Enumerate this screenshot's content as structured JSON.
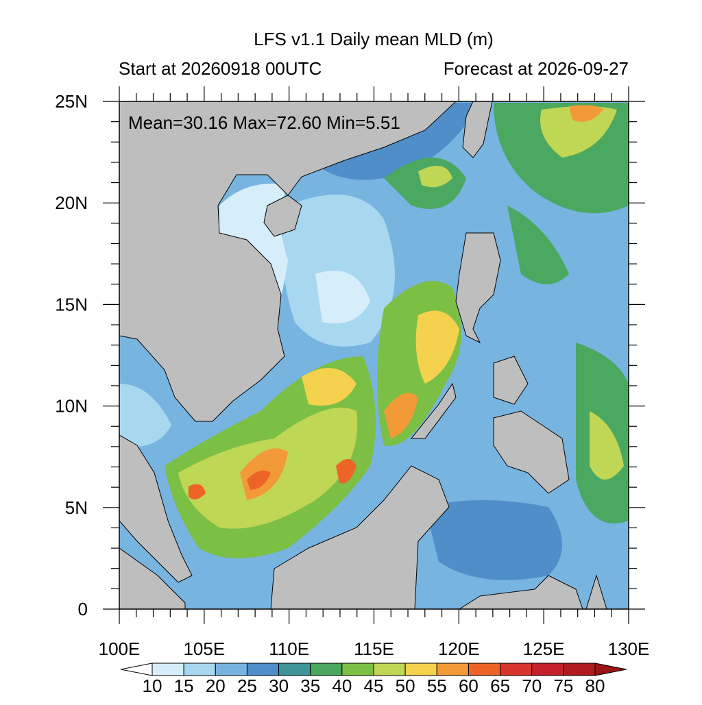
{
  "title": "LFS v1.1 Daily mean MLD (m)",
  "subtitle_left": "Start at 20260918 00UTC",
  "subtitle_right": "Forecast at 2026-09-27",
  "stats": "Mean=30.16  Max=72.60  Min=5.51",
  "map": {
    "lonlim": [
      100,
      130
    ],
    "latlim": [
      0,
      25
    ],
    "lon_ticks": [
      {
        "value": 100,
        "label": "100E"
      },
      {
        "value": 105,
        "label": "105E"
      },
      {
        "value": 110,
        "label": "110E"
      },
      {
        "value": 115,
        "label": "115E"
      },
      {
        "value": 120,
        "label": "120E"
      },
      {
        "value": 125,
        "label": "125E"
      },
      {
        "value": 130,
        "label": "130E"
      }
    ],
    "lat_ticks": [
      0,
      {
        "value": 5,
        "label": "5N"
      },
      {
        "value": 10,
        "label": "10N"
      },
      {
        "value": 15,
        "label": "15N"
      },
      {
        "value": 20,
        "label": "20N"
      },
      {
        "value": 25,
        "label": "25N"
      }
    ]
  },
  "colorbar": {
    "levels": [
      10,
      15,
      20,
      25,
      30,
      35,
      40,
      45,
      50,
      55,
      60,
      65,
      70,
      75,
      80
    ],
    "colors": [
      "#ffffff",
      "#d6eef9",
      "#a8d8f0",
      "#78b4e0",
      "#4f8ec8",
      "#3e9496",
      "#4aa860",
      "#7bbf45",
      "#c0d655",
      "#f5d24d",
      "#f39a38",
      "#ec6428",
      "#d9352a",
      "#c5202a",
      "#b01a1f",
      "#9a1515"
    ]
  }
}
